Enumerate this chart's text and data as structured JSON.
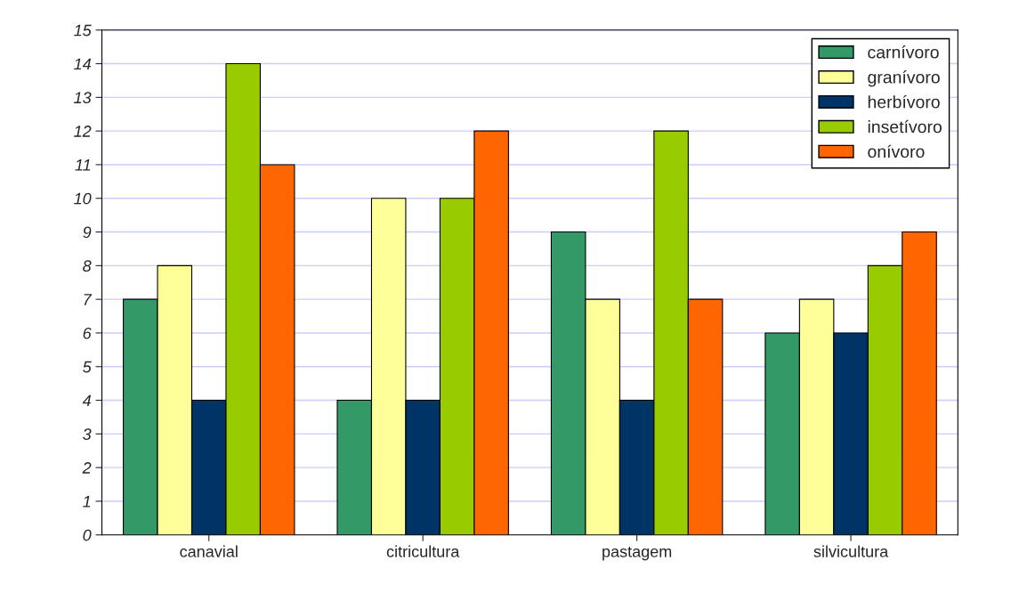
{
  "chart_data": {
    "type": "bar",
    "categories": [
      "canavial",
      "citricultura",
      "pastagem",
      "silvicultura"
    ],
    "series": [
      {
        "name": "carnívoro",
        "color": "#339966",
        "values": [
          7,
          4,
          9,
          6
        ]
      },
      {
        "name": "granívoro",
        "color": "#ffff99",
        "values": [
          8,
          10,
          7,
          7
        ]
      },
      {
        "name": "herbívoro",
        "color": "#003366",
        "values": [
          4,
          4,
          4,
          6
        ]
      },
      {
        "name": "insetívoro",
        "color": "#99cc00",
        "values": [
          14,
          10,
          12,
          8
        ]
      },
      {
        "name": "onívoro",
        "color": "#ff6600",
        "values": [
          11,
          12,
          7,
          9
        ]
      }
    ],
    "ylim": [
      0,
      15
    ],
    "yticks": [
      0,
      1,
      2,
      3,
      4,
      5,
      6,
      7,
      8,
      9,
      10,
      11,
      12,
      13,
      14,
      15
    ],
    "grid": "y",
    "legend": "top right"
  }
}
